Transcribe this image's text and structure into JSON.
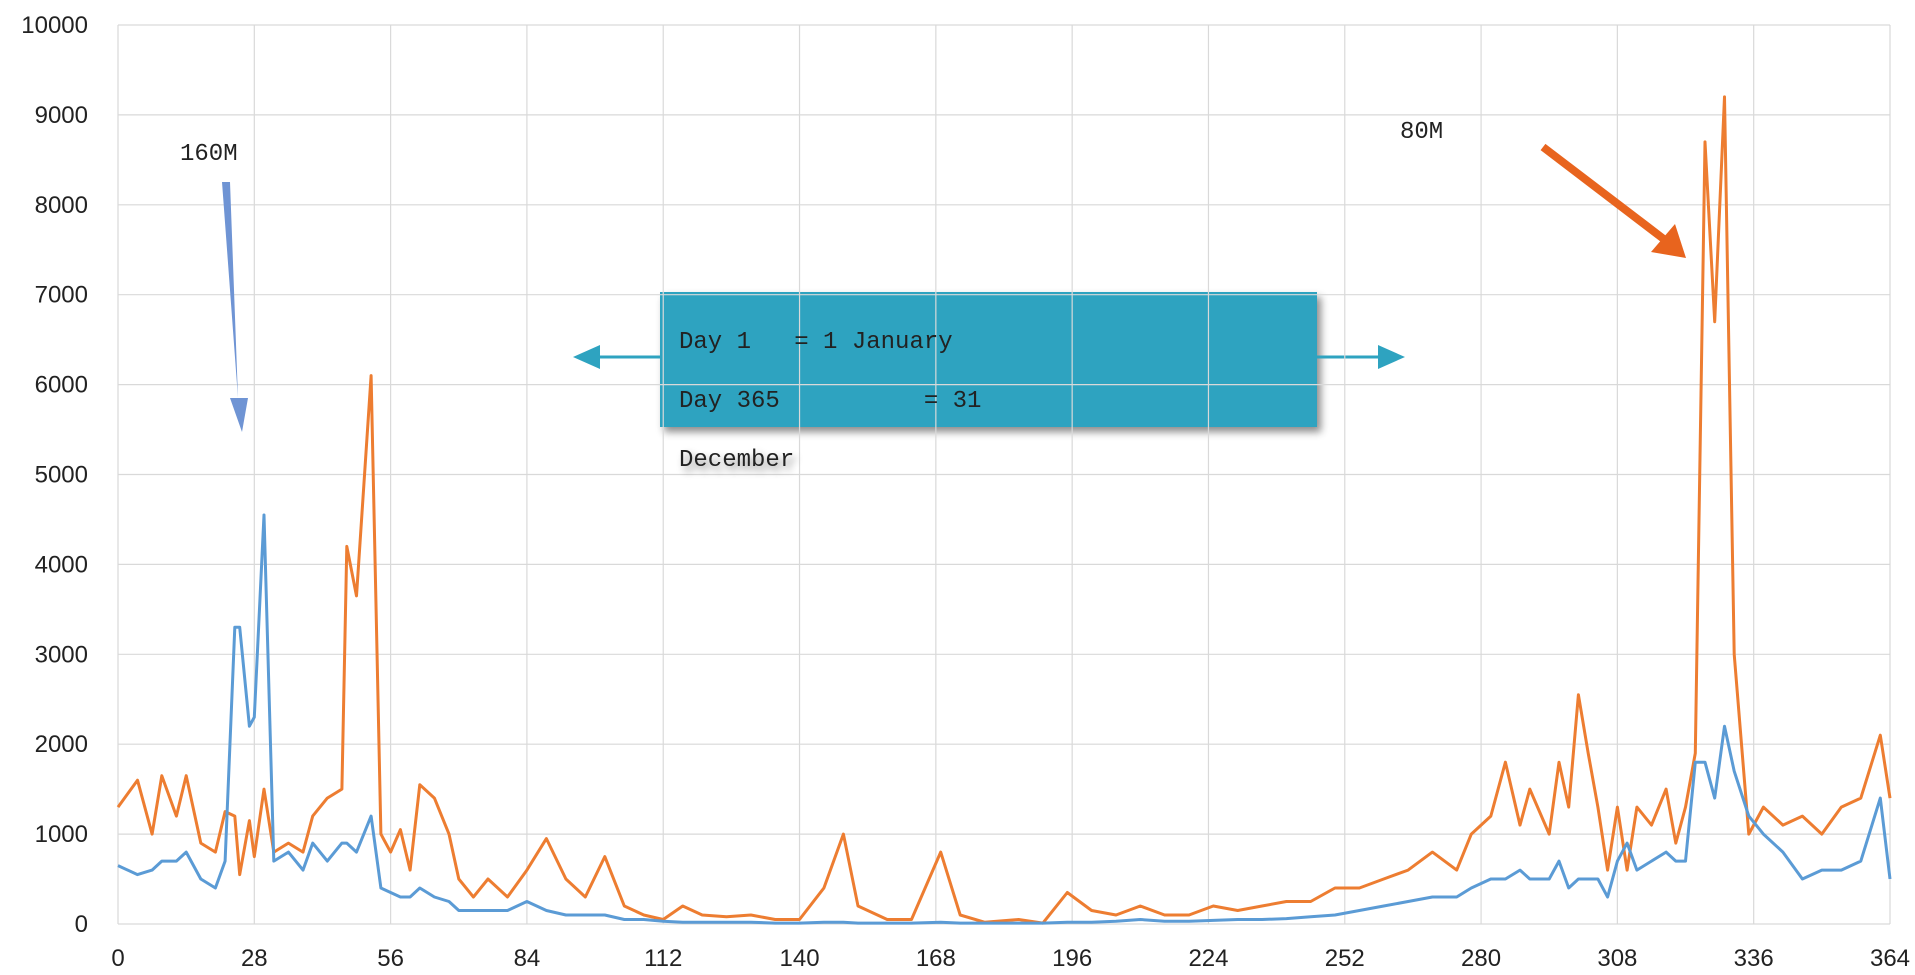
{
  "chart_data": {
    "type": "line",
    "x": [
      0,
      4,
      7,
      9,
      12,
      14,
      17,
      20,
      22,
      24,
      25,
      27,
      28,
      30,
      32,
      35,
      38,
      40,
      43,
      46,
      47,
      49,
      52,
      54,
      56,
      58,
      60,
      62,
      65,
      68,
      70,
      73,
      76,
      80,
      84,
      88,
      92,
      96,
      100,
      104,
      108,
      112,
      116,
      120,
      125,
      130,
      135,
      140,
      145,
      149,
      152,
      158,
      163,
      169,
      173,
      178,
      185,
      190,
      195,
      200,
      205,
      210,
      215,
      220,
      225,
      230,
      235,
      240,
      245,
      250,
      255,
      260,
      265,
      270,
      275,
      278,
      282,
      285,
      288,
      290,
      294,
      296,
      298,
      300,
      302,
      304,
      306,
      308,
      310,
      312,
      315,
      318,
      320,
      322,
      324,
      326,
      328,
      330,
      332,
      335,
      338,
      342,
      346,
      350,
      354,
      358,
      362,
      364
    ],
    "series": [
      {
        "color": "#ed7d31",
        "values": [
          1300,
          1600,
          1000,
          1650,
          1200,
          1650,
          900,
          800,
          1250,
          1200,
          550,
          1150,
          750,
          1500,
          800,
          900,
          800,
          1200,
          1400,
          1500,
          4200,
          3650,
          6100,
          1000,
          800,
          1050,
          600,
          1550,
          1400,
          1000,
          500,
          300,
          500,
          300,
          600,
          950,
          500,
          300,
          750,
          200,
          100,
          50,
          200,
          100,
          80,
          100,
          50,
          50,
          400,
          1000,
          200,
          50,
          50,
          800,
          100,
          20,
          50,
          10,
          350,
          150,
          100,
          200,
          100,
          100,
          200,
          150,
          200,
          250,
          250,
          400,
          400,
          500,
          600,
          800,
          600,
          1000,
          1200,
          1800,
          1100,
          1500,
          1000,
          1800,
          1300,
          2550,
          1900,
          1300,
          600,
          1300,
          600,
          1300,
          1100,
          1500,
          900,
          1300,
          1900,
          8700,
          6700,
          9200,
          3000,
          1000,
          1300,
          1100,
          1200,
          1000,
          1300,
          1400,
          2100,
          1400
        ]
      },
      {
        "color": "#5b9bd5",
        "values": [
          650,
          550,
          600,
          700,
          700,
          800,
          500,
          400,
          700,
          3300,
          3300,
          2200,
          2300,
          4550,
          700,
          800,
          600,
          900,
          700,
          900,
          900,
          800,
          1200,
          400,
          350,
          300,
          300,
          400,
          300,
          250,
          150,
          150,
          150,
          150,
          250,
          150,
          100,
          100,
          100,
          50,
          50,
          30,
          20,
          20,
          20,
          20,
          10,
          10,
          20,
          20,
          10,
          10,
          10,
          20,
          10,
          10,
          10,
          10,
          20,
          20,
          30,
          50,
          30,
          30,
          40,
          50,
          50,
          60,
          80,
          100,
          150,
          200,
          250,
          300,
          300,
          400,
          500,
          500,
          600,
          500,
          500,
          700,
          400,
          500,
          500,
          500,
          300,
          700,
          900,
          600,
          700,
          800,
          700,
          700,
          1800,
          1800,
          1400,
          2200,
          1700,
          1200,
          1000,
          800,
          500,
          600,
          600,
          700,
          1400,
          500
        ]
      }
    ],
    "xlim": [
      0,
      364
    ],
    "xticks": [
      0,
      28,
      56,
      84,
      112,
      140,
      168,
      196,
      224,
      252,
      280,
      308,
      336,
      364
    ],
    "ylim": [
      0,
      10000
    ],
    "yticks": [
      0,
      1000,
      2000,
      3000,
      4000,
      5000,
      6000,
      7000,
      8000,
      9000,
      10000
    ],
    "grid": true,
    "annotations": [
      "160M",
      "80M",
      "Day 1   = 1 January",
      "Day 365          = 31",
      "December"
    ]
  }
}
